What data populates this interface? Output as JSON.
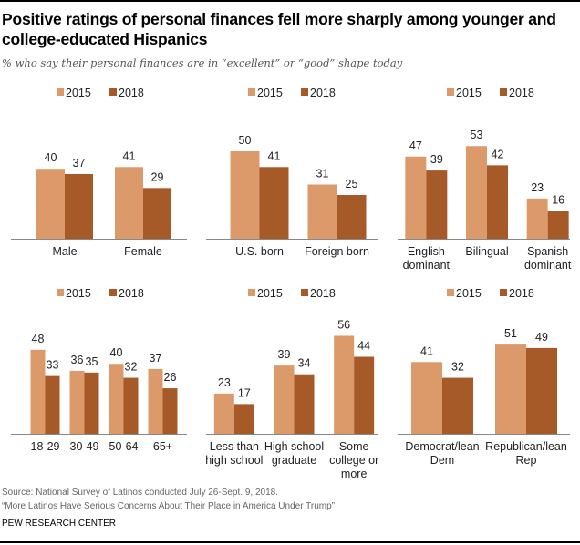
{
  "title": "Positive ratings of personal finances fell more sharply among younger and college-educated Hispanics",
  "subtitle": "% who say their personal finances are in “excellent” or “good” shape today",
  "source": "Source: National Survey of Latinos conducted July 26-Sept. 9, 2018.",
  "report": "“More Latinos Have Serious Concerns About Their Place in America Under Trump”",
  "brand": "PEW RESEARCH CENTER",
  "colors": {
    "2015": "#dc9a6b",
    "2018": "#a65a28"
  },
  "chart_data": [
    {
      "type": "bar",
      "legend": [
        "2015",
        "2018"
      ],
      "categories": [
        [
          "Male"
        ],
        [
          "Female"
        ]
      ],
      "series": [
        {
          "name": "2015",
          "values": [
            40,
            41
          ]
        },
        {
          "name": "2018",
          "values": [
            37,
            29
          ]
        }
      ]
    },
    {
      "type": "bar",
      "legend": [
        "2015",
        "2018"
      ],
      "categories": [
        [
          "U.S. born"
        ],
        [
          "Foreign born"
        ]
      ],
      "series": [
        {
          "name": "2015",
          "values": [
            50,
            31
          ]
        },
        {
          "name": "2018",
          "values": [
            41,
            25
          ]
        }
      ]
    },
    {
      "type": "bar",
      "legend": [
        "2015",
        "2018"
      ],
      "categories": [
        [
          "English",
          "dominant"
        ],
        [
          "Bilingual"
        ],
        [
          "Spanish",
          "dominant"
        ]
      ],
      "series": [
        {
          "name": "2015",
          "values": [
            47,
            53,
            23
          ]
        },
        {
          "name": "2018",
          "values": [
            39,
            42,
            16
          ]
        }
      ]
    },
    {
      "type": "bar",
      "legend": [
        "2015",
        "2018"
      ],
      "categories": [
        [
          "18-29"
        ],
        [
          "30-49"
        ],
        [
          "50-64"
        ],
        [
          "65+"
        ]
      ],
      "series": [
        {
          "name": "2015",
          "values": [
            48,
            36,
            40,
            37
          ]
        },
        {
          "name": "2018",
          "values": [
            33,
            35,
            32,
            26
          ]
        }
      ]
    },
    {
      "type": "bar",
      "legend": [
        "2015",
        "2018"
      ],
      "categories": [
        [
          "Less than",
          "high school"
        ],
        [
          "High school",
          "graduate"
        ],
        [
          "Some",
          "college or",
          "more"
        ]
      ],
      "series": [
        {
          "name": "2015",
          "values": [
            23,
            39,
            56
          ]
        },
        {
          "name": "2018",
          "values": [
            17,
            34,
            44
          ]
        }
      ]
    },
    {
      "type": "bar",
      "legend": [
        "2015",
        "2018"
      ],
      "categories": [
        [
          "Democrat/lean",
          "Dem"
        ],
        [
          "Republican/lean",
          "Rep"
        ]
      ],
      "series": [
        {
          "name": "2015",
          "values": [
            41,
            51
          ]
        },
        {
          "name": "2018",
          "values": [
            32,
            49
          ]
        }
      ]
    }
  ]
}
